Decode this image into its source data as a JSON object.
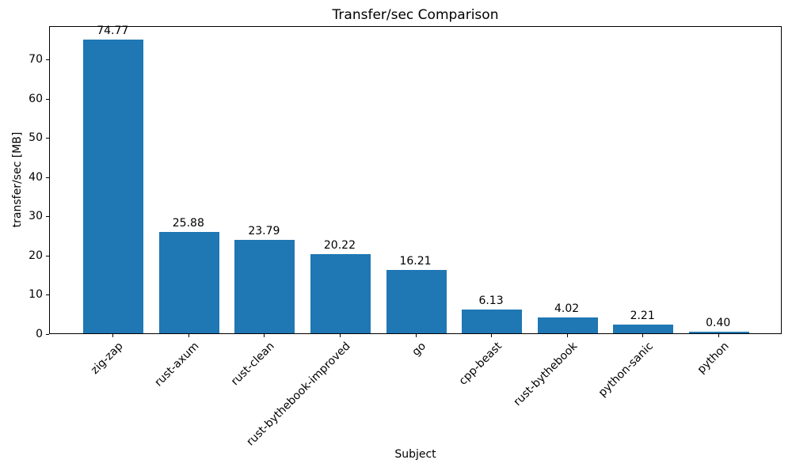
{
  "title": "Transfer/sec Comparison",
  "chart_data": {
    "type": "bar",
    "title": "Transfer/sec Comparison",
    "xlabel": "Subject",
    "ylabel": "transfer/sec [MB]",
    "categories": [
      "zig-zap",
      "rust-axum",
      "rust-clean",
      "rust-bythebook-improved",
      "go",
      "cpp-beast",
      "rust-bythebook",
      "python-sanic",
      "python"
    ],
    "values": [
      74.77,
      25.88,
      23.79,
      20.22,
      16.21,
      6.13,
      4.02,
      2.21,
      0.4
    ],
    "value_labels": [
      "74.77",
      "25.88",
      "23.79",
      "20.22",
      "16.21",
      "6.13",
      "4.02",
      "2.21",
      "0.40"
    ],
    "yticks": [
      0,
      10,
      20,
      30,
      40,
      50,
      60,
      70
    ],
    "ylim": [
      0,
      78.5
    ],
    "xlim": [
      -0.84,
      8.84
    ],
    "bar_rel_width": 0.8,
    "bar_color": "#1f77b4",
    "grid": false,
    "legend": null
  }
}
